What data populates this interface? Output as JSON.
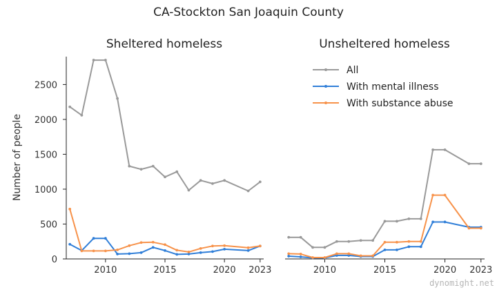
{
  "title": "CA-Stockton San Joaquin County",
  "watermark": "dynomight.net",
  "chart_data": [
    {
      "type": "line",
      "title": "Sheltered homeless",
      "ylabel": "Number of people",
      "xlim": [
        2006.7,
        2023.3
      ],
      "ylim": [
        0,
        2900
      ],
      "xticks": [
        2010,
        2015,
        2020,
        2023
      ],
      "yticks": [
        0,
        500,
        1000,
        1500,
        2000,
        2500
      ],
      "series": [
        {
          "name": "All",
          "color": "#999999",
          "x": [
            2007,
            2008,
            2009,
            2010,
            2011,
            2012,
            2013,
            2014,
            2015,
            2016,
            2017,
            2018,
            2019,
            2020,
            2022,
            2023
          ],
          "y": [
            2180,
            2060,
            2850,
            2850,
            2300,
            1330,
            1285,
            1330,
            1175,
            1250,
            985,
            1125,
            1080,
            1125,
            975,
            1105
          ]
        },
        {
          "name": "With mental illness",
          "color": "#2f7ed8",
          "x": [
            2007,
            2008,
            2009,
            2010,
            2011,
            2012,
            2013,
            2014,
            2015,
            2016,
            2017,
            2018,
            2019,
            2020,
            2022,
            2023
          ],
          "y": [
            210,
            120,
            295,
            295,
            70,
            75,
            90,
            165,
            120,
            65,
            70,
            90,
            105,
            140,
            120,
            185
          ]
        },
        {
          "name": "With substance abuse",
          "color": "#f7924a",
          "x": [
            2007,
            2008,
            2009,
            2010,
            2011,
            2012,
            2013,
            2014,
            2015,
            2016,
            2017,
            2018,
            2019,
            2020,
            2022,
            2023
          ],
          "y": [
            715,
            115,
            115,
            115,
            130,
            190,
            235,
            240,
            205,
            125,
            100,
            150,
            185,
            190,
            160,
            185
          ]
        }
      ]
    },
    {
      "type": "line",
      "title": "Unsheltered homeless",
      "xlim": [
        2006.7,
        2023.3
      ],
      "ylim": [
        0,
        2900
      ],
      "xticks": [
        2010,
        2015,
        2020,
        2023
      ],
      "legend": {
        "position": "top-right"
      },
      "series": [
        {
          "name": "All",
          "color": "#999999",
          "x": [
            2007,
            2008,
            2009,
            2010,
            2011,
            2012,
            2013,
            2014,
            2015,
            2016,
            2017,
            2018,
            2019,
            2020,
            2022,
            2023
          ],
          "y": [
            310,
            310,
            165,
            165,
            250,
            250,
            265,
            265,
            540,
            540,
            575,
            575,
            1565,
            1565,
            1365,
            1365
          ]
        },
        {
          "name": "With mental illness",
          "color": "#2f7ed8",
          "x": [
            2007,
            2008,
            2009,
            2010,
            2011,
            2012,
            2013,
            2014,
            2015,
            2016,
            2017,
            2018,
            2019,
            2020,
            2022,
            2023
          ],
          "y": [
            40,
            30,
            15,
            15,
            50,
            50,
            35,
            35,
            130,
            130,
            175,
            175,
            530,
            530,
            455,
            455
          ]
        },
        {
          "name": "With substance abuse",
          "color": "#f7924a",
          "x": [
            2007,
            2008,
            2009,
            2010,
            2011,
            2012,
            2013,
            2014,
            2015,
            2016,
            2017,
            2018,
            2019,
            2020,
            2022,
            2023
          ],
          "y": [
            75,
            70,
            20,
            20,
            75,
            75,
            45,
            45,
            240,
            240,
            250,
            250,
            915,
            915,
            440,
            440
          ]
        }
      ]
    }
  ]
}
